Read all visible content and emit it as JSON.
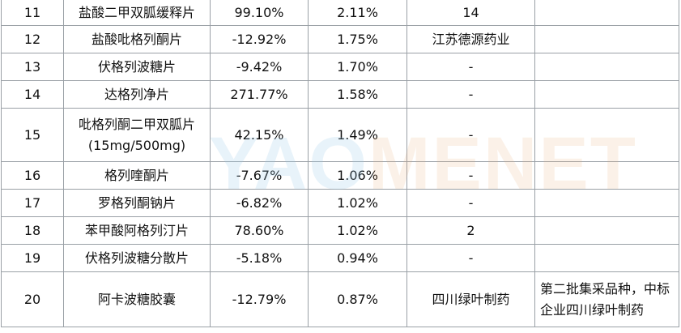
{
  "rows": [
    {
      "rank": "11",
      "drug": "盐酸二甲双胍缓释片",
      "growth": "99.10%",
      "share": "2.11%",
      "company": "14",
      "note": ""
    },
    {
      "rank": "12",
      "drug": "盐酸吡格列酮片",
      "growth": "-12.92%",
      "share": "1.75%",
      "company": "江苏德源药业",
      "note": ""
    },
    {
      "rank": "13",
      "drug": "伏格列波糖片",
      "growth": "-9.42%",
      "share": "1.70%",
      "company": "-",
      "note": ""
    },
    {
      "rank": "14",
      "drug": "达格列净片",
      "growth": "271.77%",
      "share": "1.58%",
      "company": "-",
      "note": ""
    },
    {
      "rank": "15",
      "drug": "吡格列酮二甲双胍片",
      "drug_line2": "(15mg/500mg)",
      "growth": "42.15%",
      "share": "1.49%",
      "company": "-",
      "note": ""
    },
    {
      "rank": "16",
      "drug": "格列喹酮片",
      "growth": "-7.67%",
      "share": "1.06%",
      "company": "-",
      "note": ""
    },
    {
      "rank": "17",
      "drug": "罗格列酮钠片",
      "growth": "-6.82%",
      "share": "1.02%",
      "company": "-",
      "note": ""
    },
    {
      "rank": "18",
      "drug": "苯甲酸阿格列汀片",
      "growth": "78.60%",
      "share": "1.02%",
      "company": "2",
      "note": ""
    },
    {
      "rank": "19",
      "drug": "伏格列波糖分散片",
      "growth": "-5.18%",
      "share": "0.94%",
      "company": "-",
      "note": ""
    },
    {
      "rank": "20",
      "drug": "阿卡波糖胶囊",
      "growth": "-12.79%",
      "share": "0.87%",
      "company": "四川绿叶制药",
      "note": "第二批集采品种，中标企业四川绿叶制药"
    }
  ],
  "watermark": {
    "part1": "YAO",
    "part2": "MENET"
  }
}
